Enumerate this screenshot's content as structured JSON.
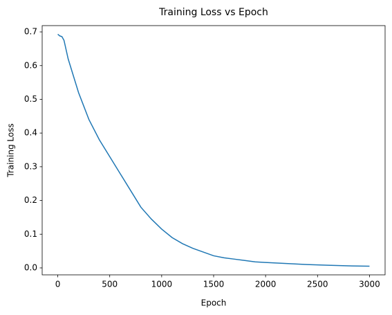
{
  "chart_data": {
    "type": "line",
    "title": "Training Loss vs Epoch",
    "x_label": "Epoch",
    "y_label": "Training Loss",
    "x": [
      0,
      20,
      40,
      60,
      100,
      150,
      200,
      250,
      300,
      400,
      500,
      600,
      700,
      800,
      900,
      1000,
      1100,
      1200,
      1300,
      1400,
      1500,
      1600,
      1700,
      1800,
      1900,
      2000,
      2200,
      2400,
      2600,
      2800,
      3000
    ],
    "series": [
      {
        "name": "Training Loss",
        "color": "#1f77b4",
        "values": [
          0.693,
          0.688,
          0.686,
          0.675,
          0.62,
          0.57,
          0.52,
          0.48,
          0.44,
          0.38,
          0.33,
          0.28,
          0.23,
          0.18,
          0.145,
          0.115,
          0.09,
          0.072,
          0.058,
          0.047,
          0.036,
          0.03,
          0.026,
          0.022,
          0.018,
          0.016,
          0.013,
          0.01,
          0.008,
          0.006,
          0.005
        ]
      }
    ],
    "xlim": [
      -150,
      3150
    ],
    "ylim": [
      -0.0206,
      0.7186
    ],
    "xticks": [
      0,
      500,
      1000,
      1500,
      2000,
      2500,
      3000
    ],
    "yticks": [
      {
        "value": 0,
        "label": "0.0"
      },
      0.1,
      0.2,
      0.3,
      0.4,
      0.5,
      0.6,
      0.7
    ],
    "grid": false
  }
}
